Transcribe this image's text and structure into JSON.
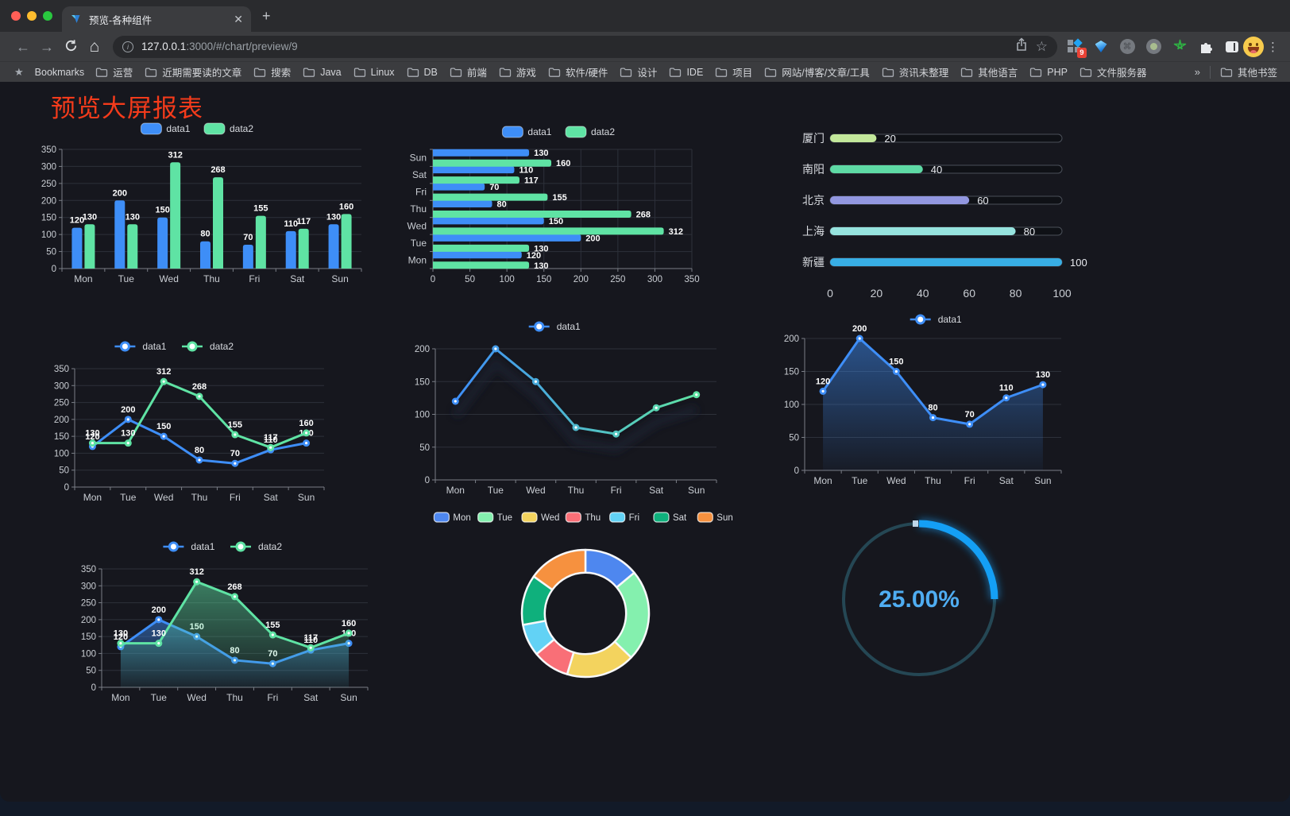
{
  "browser": {
    "tab_title": "预览-各种组件",
    "url": {
      "host": "127.0.0.1",
      "rest": ":3000/#/chart/preview/9"
    },
    "extension_badge": "9",
    "bookmarks_bar": {
      "label": "Bookmarks",
      "items": [
        "运营",
        "近期需要读的文章",
        "搜索",
        "Java",
        "Linux",
        "DB",
        "前端",
        "游戏",
        "软件/硬件",
        "设计",
        "IDE",
        "项目",
        "网站/博客/文章/工具",
        "资讯未整理",
        "其他语言",
        "PHP",
        "文件服务器"
      ],
      "overflow": "»",
      "other": "其他书签"
    }
  },
  "page": {
    "title": "预览大屏报表"
  },
  "chart_data": [
    {
      "id": "bar-vertical",
      "type": "bar",
      "categories": [
        "Mon",
        "Tue",
        "Wed",
        "Thu",
        "Fri",
        "Sat",
        "Sun"
      ],
      "series": [
        {
          "name": "data1",
          "color": "#3E8EF7",
          "values": [
            120,
            200,
            150,
            80,
            70,
            110,
            130
          ]
        },
        {
          "name": "data2",
          "color": "#5FE3A4",
          "values": [
            130,
            130,
            312,
            268,
            155,
            117,
            160
          ]
        }
      ],
      "ylim": [
        0,
        350
      ],
      "ytick_step": 50,
      "value_labels": true,
      "legend_position": "top",
      "grid": true
    },
    {
      "id": "bar-horizontal",
      "type": "bar-horizontal",
      "categories_top_to_bottom": [
        "Sun",
        "Sat",
        "Fri",
        "Thu",
        "Wed",
        "Tue",
        "Mon"
      ],
      "series": [
        {
          "name": "data1",
          "color": "#3E8EF7",
          "values_top_to_bottom": [
            130,
            110,
            70,
            80,
            150,
            200,
            120
          ]
        },
        {
          "name": "data2",
          "color": "#5FE3A4",
          "values_top_to_bottom": [
            160,
            117,
            155,
            268,
            312,
            130,
            130
          ]
        }
      ],
      "xlim": [
        0,
        350
      ],
      "xtick_step": 50,
      "value_labels": true,
      "legend_position": "top",
      "grid": true
    },
    {
      "id": "progress-bars",
      "type": "progress",
      "items": [
        {
          "label": "厦门",
          "value": 20,
          "color": "#C3E89B"
        },
        {
          "label": "南阳",
          "value": 40,
          "color": "#5EDAA5"
        },
        {
          "label": "北京",
          "value": 60,
          "color": "#9297E0"
        },
        {
          "label": "上海",
          "value": 80,
          "color": "#96E3DE"
        },
        {
          "label": "新疆",
          "value": 100,
          "color": "#38AEE5"
        }
      ],
      "xlim": [
        0,
        100
      ],
      "xticks": [
        0,
        20,
        40,
        60,
        80,
        100
      ]
    },
    {
      "id": "line-two-series",
      "type": "line",
      "categories": [
        "Mon",
        "Tue",
        "Wed",
        "Thu",
        "Fri",
        "Sat",
        "Sun"
      ],
      "series": [
        {
          "name": "data1",
          "color": "#3E8EF7",
          "values": [
            120,
            200,
            150,
            80,
            70,
            110,
            130
          ]
        },
        {
          "name": "data2",
          "color": "#5FE3A4",
          "values": [
            130,
            130,
            312,
            268,
            155,
            117,
            160
          ]
        }
      ],
      "ylim": [
        0,
        350
      ],
      "ytick_step": 50,
      "value_labels": true,
      "legend_position": "top",
      "grid": true
    },
    {
      "id": "line-gradient",
      "type": "line",
      "categories": [
        "Mon",
        "Tue",
        "Wed",
        "Thu",
        "Fri",
        "Sat",
        "Sun"
      ],
      "series": [
        {
          "name": "data1",
          "gradient": [
            "#3E8EF7",
            "#5FE3A4"
          ],
          "shadow": true,
          "values": [
            120,
            200,
            150,
            80,
            70,
            110,
            130
          ]
        }
      ],
      "ylim": [
        0,
        200
      ],
      "ytick_step": 50,
      "value_labels": false,
      "legend_position": "top",
      "grid": true
    },
    {
      "id": "area-single",
      "type": "line",
      "categories": [
        "Mon",
        "Tue",
        "Wed",
        "Thu",
        "Fri",
        "Sat",
        "Sun"
      ],
      "series": [
        {
          "name": "data1",
          "color": "#3E8EF7",
          "area": true,
          "values": [
            120,
            200,
            150,
            80,
            70,
            110,
            130
          ]
        }
      ],
      "ylim": [
        0,
        200
      ],
      "ytick_step": 50,
      "value_labels": true,
      "legend_position": "top",
      "grid": true
    },
    {
      "id": "area-two-series",
      "type": "line",
      "categories": [
        "Mon",
        "Tue",
        "Wed",
        "Thu",
        "Fri",
        "Sat",
        "Sun"
      ],
      "series": [
        {
          "name": "data1",
          "color": "#3E8EF7",
          "area": true,
          "values": [
            120,
            200,
            150,
            80,
            70,
            110,
            130
          ]
        },
        {
          "name": "data2",
          "color": "#5FE3A4",
          "area": true,
          "values": [
            130,
            130,
            312,
            268,
            155,
            117,
            160
          ]
        }
      ],
      "ylim": [
        0,
        350
      ],
      "ytick_step": 50,
      "value_labels": true,
      "legend_position": "top",
      "grid": true
    },
    {
      "id": "donut",
      "type": "pie",
      "legend_position": "top",
      "inner_radius_ratio": 0.64,
      "start_angle_deg": -90,
      "clockwise": true,
      "items": [
        {
          "label": "Mon",
          "value": 120,
          "color": "#4E87EF"
        },
        {
          "label": "Tue",
          "value": 200,
          "color": "#84F0AE"
        },
        {
          "label": "Wed",
          "value": 150,
          "color": "#F3D35E"
        },
        {
          "label": "Thu",
          "value": 80,
          "color": "#F96F77"
        },
        {
          "label": "Fri",
          "value": 70,
          "color": "#62D2F5"
        },
        {
          "label": "Sat",
          "value": 110,
          "color": "#0FB07C"
        },
        {
          "label": "Sun",
          "value": 130,
          "color": "#F6913F"
        }
      ]
    },
    {
      "id": "gauge",
      "type": "gauge",
      "value": 25,
      "max": 100,
      "display": "25.00%",
      "arc_color": "#149FF5",
      "track_color": "#254754",
      "text_color": "#4FADF2"
    }
  ]
}
